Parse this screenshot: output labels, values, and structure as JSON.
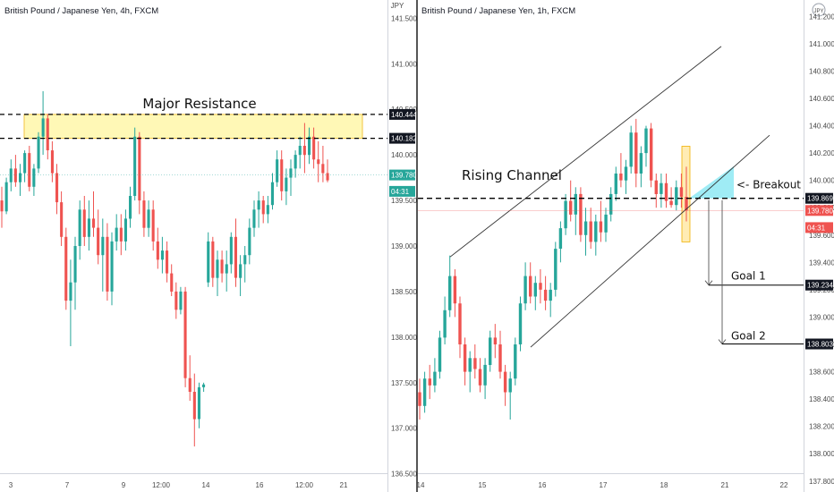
{
  "chart_data": [
    {
      "type": "candlestick",
      "title": "British Pound / Japanese Yen, 4h, FXCM",
      "currency": "JPY",
      "x_ticks": [
        "3",
        "7",
        "9",
        "12:00",
        "14",
        "16",
        "12:00",
        "21"
      ],
      "y_ticks": [
        "141.500",
        "141.000",
        "140.500",
        "140.000",
        "139.500",
        "139.000",
        "138.500",
        "138.000",
        "137.500",
        "137.000",
        "136.500"
      ],
      "ylim": [
        136.3,
        141.7
      ],
      "price_labels": [
        {
          "value": 140.444,
          "text": "140.444",
          "style": "dark"
        },
        {
          "value": 140.182,
          "text": "140.182",
          "style": "dark"
        },
        {
          "value": 139.78,
          "text": "139.780",
          "style": "green"
        },
        {
          "value": 139.6,
          "text": "04:31",
          "style": "green"
        }
      ],
      "annotations": {
        "zone_label": "Major Resistance",
        "zone_top": 140.444,
        "zone_bottom": 140.182,
        "current_price": 139.78
      },
      "candles": [
        [
          139.5,
          139.65,
          139.2,
          139.38
        ],
        [
          139.38,
          139.75,
          139.35,
          139.7
        ],
        [
          139.7,
          139.95,
          139.6,
          139.85
        ],
        [
          139.85,
          140.0,
          139.65,
          139.7
        ],
        [
          139.7,
          139.9,
          139.55,
          139.8
        ],
        [
          139.8,
          140.05,
          139.7,
          140.02
        ],
        [
          140.02,
          140.1,
          139.6,
          139.65
        ],
        [
          139.65,
          139.9,
          139.55,
          139.85
        ],
        [
          139.85,
          140.25,
          139.8,
          140.2
        ],
        [
          140.2,
          140.7,
          140.0,
          140.4
        ],
        [
          140.4,
          140.45,
          139.95,
          140.05
        ],
        [
          140.05,
          140.15,
          139.7,
          139.8
        ],
        [
          139.8,
          139.9,
          139.35,
          139.48
        ],
        [
          139.48,
          139.6,
          139.0,
          139.1
        ],
        [
          139.1,
          139.2,
          138.3,
          138.4
        ],
        [
          138.4,
          138.85,
          137.9,
          138.6
        ],
        [
          138.6,
          139.1,
          138.3,
          139.0
        ],
        [
          139.0,
          139.5,
          138.85,
          139.4
        ],
        [
          139.4,
          139.55,
          139.0,
          139.1
        ],
        [
          139.1,
          139.5,
          138.95,
          139.3
        ],
        [
          139.3,
          139.6,
          139.1,
          139.2
        ],
        [
          139.2,
          139.4,
          138.8,
          138.9
        ],
        [
          138.9,
          139.3,
          138.5,
          139.1
        ],
        [
          139.1,
          139.25,
          138.4,
          138.5
        ],
        [
          138.5,
          139.15,
          138.35,
          139.05
        ],
        [
          139.05,
          139.35,
          138.95,
          139.2
        ],
        [
          139.2,
          139.35,
          138.9,
          139.05
        ],
        [
          139.05,
          139.4,
          138.95,
          139.3
        ],
        [
          139.3,
          139.65,
          139.2,
          139.55
        ],
        [
          139.55,
          140.3,
          139.5,
          140.2
        ],
        [
          140.2,
          140.25,
          139.35,
          139.5
        ],
        [
          139.5,
          139.6,
          139.1,
          139.2
        ],
        [
          139.2,
          139.5,
          139.1,
          139.4
        ],
        [
          139.4,
          139.5,
          138.95,
          139.05
        ],
        [
          139.05,
          139.2,
          138.75,
          138.85
        ],
        [
          138.85,
          139.1,
          138.7,
          138.95
        ],
        [
          138.95,
          139.05,
          138.6,
          138.7
        ],
        [
          138.7,
          138.8,
          138.45,
          138.5
        ],
        [
          138.5,
          138.6,
          138.2,
          138.3
        ],
        [
          138.3,
          138.55,
          138.25,
          138.5
        ],
        [
          138.5,
          138.55,
          137.45,
          137.55
        ],
        [
          137.55,
          137.8,
          137.3,
          137.4
        ],
        [
          137.4,
          137.6,
          136.8,
          137.1
        ],
        [
          137.1,
          137.5,
          137.0,
          137.45
        ],
        [
          137.45,
          137.5,
          137.4,
          137.48
        ],
        [
          138.6,
          139.15,
          138.55,
          139.05
        ],
        [
          139.05,
          139.1,
          138.55,
          138.65
        ],
        [
          138.65,
          138.95,
          138.45,
          138.85
        ],
        [
          138.85,
          138.95,
          138.6,
          138.7
        ],
        [
          138.7,
          138.95,
          138.5,
          138.8
        ],
        [
          138.8,
          139.15,
          138.7,
          139.1
        ],
        [
          139.1,
          139.3,
          138.55,
          138.65
        ],
        [
          138.65,
          138.9,
          138.45,
          138.8
        ],
        [
          138.8,
          139.0,
          138.6,
          138.9
        ],
        [
          138.9,
          139.3,
          138.8,
          139.2
        ],
        [
          139.2,
          139.5,
          139.1,
          139.4
        ],
        [
          139.4,
          139.6,
          139.2,
          139.5
        ],
        [
          139.5,
          139.55,
          139.25,
          139.35
        ],
        [
          139.35,
          139.55,
          139.25,
          139.45
        ],
        [
          139.45,
          139.8,
          139.4,
          139.7
        ],
        [
          139.7,
          140.05,
          139.65,
          139.95
        ],
        [
          139.95,
          140.05,
          139.5,
          139.6
        ],
        [
          139.6,
          139.85,
          139.45,
          139.75
        ],
        [
          139.75,
          139.95,
          139.55,
          139.85
        ],
        [
          139.85,
          140.05,
          139.75,
          140.0
        ],
        [
          140.0,
          140.2,
          139.85,
          140.1
        ],
        [
          140.1,
          140.35,
          139.8,
          140.0
        ],
        [
          140.0,
          140.3,
          139.9,
          140.2
        ],
        [
          140.2,
          140.3,
          139.85,
          139.95
        ],
        [
          139.95,
          140.15,
          139.7,
          139.9
        ],
        [
          139.9,
          140.1,
          139.7,
          139.8
        ],
        [
          139.8,
          139.95,
          139.7,
          139.72
        ]
      ]
    },
    {
      "type": "candlestick",
      "title": "British Pound / Japanese Yen, 1h, FXCM",
      "currency": "JPY",
      "x_ticks": [
        "14",
        "15",
        "16",
        "17",
        "18",
        "21",
        "22"
      ],
      "y_ticks": [
        "141.200",
        "141.000",
        "140.800",
        "140.600",
        "140.400",
        "140.200",
        "140.000",
        "139.800",
        "139.600",
        "139.400",
        "139.200",
        "139.000",
        "138.800",
        "138.600",
        "138.400",
        "138.200",
        "138.000",
        "137.800"
      ],
      "ylim": [
        137.72,
        141.32
      ],
      "price_labels": [
        {
          "value": 139.869,
          "text": "139.869",
          "style": "dark"
        },
        {
          "value": 139.78,
          "text": "139.780",
          "style": "red"
        },
        {
          "value": 139.655,
          "text": "04:31",
          "style": "red"
        },
        {
          "value": 139.234,
          "text": "139.234",
          "style": "dark"
        },
        {
          "value": 138.803,
          "text": "138.803",
          "style": "dark"
        }
      ],
      "annotations": {
        "channel_label": "Rising Channel",
        "breakout_label": "<- Breakout",
        "goal1_label": "Goal 1",
        "goal2_label": "Goal 2",
        "breakout_level": 139.869,
        "goal1": 139.234,
        "goal2": 138.803,
        "current_price": 139.78
      },
      "candles": [
        [
          138.45,
          138.55,
          138.25,
          138.35
        ],
        [
          138.35,
          138.6,
          138.3,
          138.55
        ],
        [
          138.55,
          138.65,
          138.4,
          138.5
        ],
        [
          138.5,
          138.7,
          138.45,
          138.6
        ],
        [
          138.6,
          138.9,
          138.55,
          138.85
        ],
        [
          138.85,
          139.15,
          138.8,
          139.05
        ],
        [
          139.05,
          139.45,
          139.0,
          139.3
        ],
        [
          139.3,
          139.35,
          139.0,
          139.1
        ],
        [
          139.1,
          139.15,
          138.7,
          138.8
        ],
        [
          138.8,
          138.85,
          138.5,
          138.6
        ],
        [
          138.6,
          138.75,
          138.45,
          138.7
        ],
        [
          138.7,
          138.8,
          138.55,
          138.62
        ],
        [
          138.62,
          138.7,
          138.45,
          138.5
        ],
        [
          138.5,
          138.7,
          138.4,
          138.65
        ],
        [
          138.65,
          138.9,
          138.6,
          138.85
        ],
        [
          138.85,
          138.95,
          138.7,
          138.8
        ],
        [
          138.8,
          138.9,
          138.55,
          138.6
        ],
        [
          138.6,
          138.65,
          138.35,
          138.45
        ],
        [
          138.45,
          138.6,
          138.25,
          138.55
        ],
        [
          138.55,
          138.85,
          138.5,
          138.8
        ],
        [
          138.8,
          139.15,
          138.75,
          139.1
        ],
        [
          139.1,
          139.4,
          139.05,
          139.3
        ],
        [
          139.3,
          139.4,
          139.1,
          139.15
        ],
        [
          139.15,
          139.3,
          139.05,
          139.25
        ],
        [
          139.25,
          139.35,
          139.1,
          139.2
        ],
        [
          139.2,
          139.3,
          139.05,
          139.12
        ],
        [
          139.12,
          139.25,
          139.0,
          139.2
        ],
        [
          139.2,
          139.55,
          139.15,
          139.5
        ],
        [
          139.5,
          139.7,
          139.4,
          139.65
        ],
        [
          139.65,
          139.9,
          139.6,
          139.85
        ],
        [
          139.85,
          140.0,
          139.7,
          139.75
        ],
        [
          139.75,
          139.95,
          139.6,
          139.9
        ],
        [
          139.9,
          139.95,
          139.55,
          139.6
        ],
        [
          139.6,
          139.8,
          139.45,
          139.7
        ],
        [
          139.7,
          139.8,
          139.5,
          139.55
        ],
        [
          139.55,
          139.75,
          139.45,
          139.7
        ],
        [
          139.7,
          139.85,
          139.55,
          139.62
        ],
        [
          139.62,
          139.8,
          139.55,
          139.75
        ],
        [
          139.75,
          139.95,
          139.7,
          139.9
        ],
        [
          139.9,
          140.1,
          139.85,
          140.05
        ],
        [
          140.05,
          140.2,
          139.95,
          140.0
        ],
        [
          140.0,
          140.15,
          139.9,
          140.1
        ],
        [
          140.1,
          140.4,
          140.05,
          140.35
        ],
        [
          140.35,
          140.45,
          139.95,
          140.05
        ],
        [
          140.05,
          140.25,
          139.95,
          140.2
        ],
        [
          140.2,
          140.4,
          140.1,
          140.38
        ],
        [
          140.38,
          140.42,
          139.95,
          140.0
        ],
        [
          140.0,
          140.05,
          139.8,
          139.9
        ],
        [
          139.9,
          140.05,
          139.8,
          139.98
        ],
        [
          139.98,
          140.05,
          139.8,
          139.85
        ],
        [
          139.85,
          139.95,
          139.8,
          139.82
        ],
        [
          139.82,
          140.0,
          139.78,
          139.95
        ],
        [
          139.95,
          140.05,
          139.8,
          139.88
        ],
        [
          139.88,
          140.1,
          139.7,
          139.78
        ]
      ]
    }
  ]
}
